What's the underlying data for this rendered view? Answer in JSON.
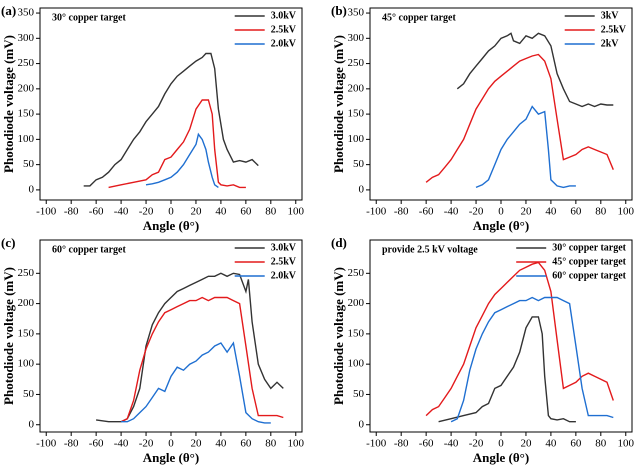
{
  "chart_data": [
    {
      "type": "line",
      "panel_label": "(a)",
      "annotation": "30° copper target",
      "x_label": "Angle (θ°)",
      "y_label": "Photodiode voltage (mV)",
      "xlim": [
        -105,
        105
      ],
      "xticks": [
        -100,
        -80,
        -60,
        -40,
        -20,
        0,
        20,
        40,
        60,
        80,
        100
      ],
      "ylim": [
        -20,
        360
      ],
      "yticks": [
        0,
        50,
        100,
        150,
        200,
        250,
        300,
        350
      ],
      "series": [
        {
          "name": "3.0kV",
          "color": "#333333",
          "x": [
            -70,
            -65,
            -60,
            -55,
            -50,
            -45,
            -40,
            -35,
            -30,
            -25,
            -20,
            -15,
            -10,
            -5,
            0,
            5,
            10,
            15,
            20,
            25,
            28,
            32,
            35,
            38,
            42,
            45,
            50,
            55,
            60,
            65,
            70
          ],
          "values": [
            8,
            8,
            20,
            25,
            35,
            50,
            60,
            80,
            100,
            115,
            135,
            150,
            165,
            190,
            210,
            225,
            235,
            245,
            255,
            262,
            270,
            270,
            240,
            160,
            100,
            80,
            55,
            58,
            55,
            60,
            48
          ]
        },
        {
          "name": "2.5kV",
          "color": "#e31a1c",
          "x": [
            -50,
            -40,
            -30,
            -20,
            -15,
            -10,
            -5,
            0,
            5,
            10,
            15,
            20,
            25,
            30,
            33,
            35,
            38,
            40,
            45,
            50,
            55,
            60
          ],
          "values": [
            5,
            10,
            15,
            20,
            30,
            35,
            60,
            65,
            80,
            95,
            120,
            160,
            178,
            178,
            150,
            80,
            15,
            10,
            8,
            10,
            5,
            5
          ]
        },
        {
          "name": "2.0kV",
          "color": "#1f6fd1",
          "x": [
            -20,
            -15,
            -10,
            -5,
            0,
            5,
            10,
            15,
            20,
            22,
            25,
            28,
            30,
            33,
            35,
            38
          ],
          "values": [
            10,
            12,
            15,
            20,
            25,
            35,
            50,
            70,
            90,
            110,
            100,
            80,
            55,
            25,
            10,
            5
          ]
        }
      ]
    },
    {
      "type": "line",
      "panel_label": "(b)",
      "annotation": "45° copper target",
      "x_label": "Angle (θ°)",
      "y_label": "Photodiode voltage (mV)",
      "xlim": [
        -105,
        105
      ],
      "xticks": [
        -100,
        -80,
        -60,
        -40,
        -20,
        0,
        20,
        40,
        60,
        80,
        100
      ],
      "ylim": [
        -20,
        360
      ],
      "yticks": [
        0,
        50,
        100,
        150,
        200,
        250,
        300,
        350
      ],
      "series": [
        {
          "name": "3kV",
          "color": "#333333",
          "x": [
            -35,
            -30,
            -25,
            -20,
            -15,
            -10,
            -5,
            0,
            5,
            8,
            10,
            15,
            20,
            25,
            30,
            35,
            40,
            45,
            50,
            55,
            60,
            65,
            70,
            75,
            80,
            85,
            90
          ],
          "values": [
            200,
            210,
            230,
            245,
            260,
            275,
            285,
            300,
            305,
            310,
            295,
            290,
            305,
            300,
            310,
            305,
            285,
            230,
            200,
            175,
            170,
            165,
            170,
            165,
            170,
            168,
            168
          ]
        },
        {
          "name": "2.5kV",
          "color": "#e31a1c",
          "x": [
            -60,
            -55,
            -50,
            -45,
            -40,
            -35,
            -30,
            -25,
            -20,
            -15,
            -10,
            -5,
            0,
            5,
            10,
            15,
            20,
            25,
            30,
            35,
            40,
            45,
            50,
            55,
            60,
            65,
            70,
            75,
            80,
            85,
            90
          ],
          "values": [
            15,
            25,
            30,
            45,
            60,
            80,
            100,
            130,
            160,
            180,
            200,
            215,
            225,
            235,
            245,
            255,
            260,
            265,
            268,
            255,
            220,
            140,
            60,
            65,
            70,
            80,
            85,
            80,
            75,
            70,
            40
          ]
        },
        {
          "name": "2kV",
          "color": "#1f6fd1",
          "x": [
            -20,
            -15,
            -10,
            -5,
            0,
            5,
            10,
            15,
            20,
            25,
            30,
            35,
            38,
            40,
            45,
            50,
            55,
            60
          ],
          "values": [
            5,
            10,
            20,
            50,
            80,
            100,
            115,
            130,
            140,
            165,
            150,
            155,
            80,
            20,
            8,
            5,
            8,
            8
          ]
        }
      ]
    },
    {
      "type": "line",
      "panel_label": "(c)",
      "annotation": "60°  copper target",
      "x_label": "Angle (θ°)",
      "y_label": "Photodiode voltage (mV)",
      "xlim": [
        -105,
        105
      ],
      "xticks": [
        -100,
        -80,
        -60,
        -40,
        -20,
        0,
        20,
        40,
        60,
        80,
        100
      ],
      "ylim": [
        -12,
        305
      ],
      "yticks": [
        0,
        50,
        100,
        150,
        200,
        250
      ],
      "series": [
        {
          "name": "3.0kV",
          "color": "#333333",
          "x": [
            -60,
            -50,
            -40,
            -35,
            -30,
            -25,
            -20,
            -15,
            -10,
            -5,
            0,
            5,
            10,
            15,
            20,
            25,
            30,
            35,
            40,
            45,
            50,
            55,
            60,
            62,
            65,
            70,
            75,
            80,
            85,
            90
          ],
          "values": [
            8,
            5,
            5,
            10,
            30,
            60,
            130,
            165,
            185,
            200,
            210,
            220,
            225,
            230,
            235,
            240,
            245,
            245,
            250,
            245,
            250,
            248,
            220,
            240,
            170,
            100,
            75,
            60,
            70,
            60
          ]
        },
        {
          "name": "2.5kV",
          "color": "#e31a1c",
          "x": [
            -40,
            -35,
            -30,
            -25,
            -20,
            -15,
            -10,
            -5,
            0,
            5,
            10,
            15,
            20,
            25,
            30,
            35,
            40,
            45,
            50,
            55,
            60,
            65,
            70,
            75,
            80,
            85,
            90
          ],
          "values": [
            5,
            10,
            40,
            90,
            125,
            150,
            170,
            185,
            190,
            195,
            200,
            205,
            205,
            210,
            205,
            210,
            210,
            210,
            205,
            200,
            130,
            60,
            15,
            15,
            15,
            15,
            12
          ]
        },
        {
          "name": "2.0kV",
          "color": "#1f6fd1",
          "x": [
            -40,
            -35,
            -30,
            -25,
            -20,
            -15,
            -10,
            -5,
            0,
            5,
            10,
            15,
            20,
            25,
            30,
            35,
            40,
            45,
            50,
            55,
            60,
            65,
            70,
            75,
            80
          ],
          "values": [
            5,
            5,
            10,
            20,
            30,
            45,
            60,
            55,
            80,
            95,
            90,
            100,
            105,
            115,
            120,
            130,
            135,
            120,
            135,
            80,
            20,
            10,
            5,
            3,
            3
          ]
        }
      ]
    },
    {
      "type": "line",
      "panel_label": "(d)",
      "annotation": "provide 2.5 kV voltage",
      "x_label": "Angle (θ°)",
      "y_label": "Photodiode voltage (mV)",
      "xlim": [
        -105,
        105
      ],
      "xticks": [
        -100,
        -80,
        -60,
        -40,
        -20,
        0,
        20,
        40,
        60,
        80,
        100
      ],
      "ylim": [
        -12,
        305
      ],
      "yticks": [
        0,
        50,
        100,
        150,
        200,
        250
      ],
      "series": [
        {
          "name": "30° copper target",
          "color": "#333333",
          "x": [
            -50,
            -40,
            -30,
            -20,
            -15,
            -10,
            -5,
            0,
            5,
            10,
            15,
            20,
            25,
            30,
            33,
            35,
            38,
            40,
            45,
            50,
            55,
            60
          ],
          "values": [
            5,
            10,
            15,
            20,
            30,
            35,
            60,
            65,
            80,
            95,
            120,
            160,
            178,
            178,
            150,
            80,
            15,
            10,
            8,
            10,
            5,
            5
          ]
        },
        {
          "name": "45° copper target",
          "color": "#e31a1c",
          "x": [
            -60,
            -55,
            -50,
            -45,
            -40,
            -35,
            -30,
            -25,
            -20,
            -15,
            -10,
            -5,
            0,
            5,
            10,
            15,
            20,
            25,
            30,
            35,
            40,
            45,
            50,
            55,
            60,
            65,
            70,
            75,
            80,
            85,
            90
          ],
          "values": [
            15,
            25,
            30,
            45,
            60,
            80,
            100,
            130,
            160,
            180,
            200,
            215,
            225,
            235,
            245,
            255,
            260,
            265,
            268,
            255,
            220,
            140,
            60,
            65,
            70,
            80,
            85,
            80,
            75,
            70,
            40
          ]
        },
        {
          "name": "60° copper target",
          "color": "#1f6fd1",
          "x": [
            -40,
            -35,
            -30,
            -25,
            -20,
            -15,
            -10,
            -5,
            0,
            5,
            10,
            15,
            20,
            25,
            30,
            35,
            40,
            45,
            50,
            55,
            60,
            65,
            70,
            75,
            80,
            85,
            90
          ],
          "values": [
            5,
            10,
            40,
            90,
            125,
            150,
            170,
            185,
            190,
            195,
            200,
            205,
            205,
            210,
            205,
            210,
            210,
            210,
            205,
            200,
            130,
            60,
            15,
            15,
            15,
            15,
            12
          ]
        }
      ]
    }
  ]
}
